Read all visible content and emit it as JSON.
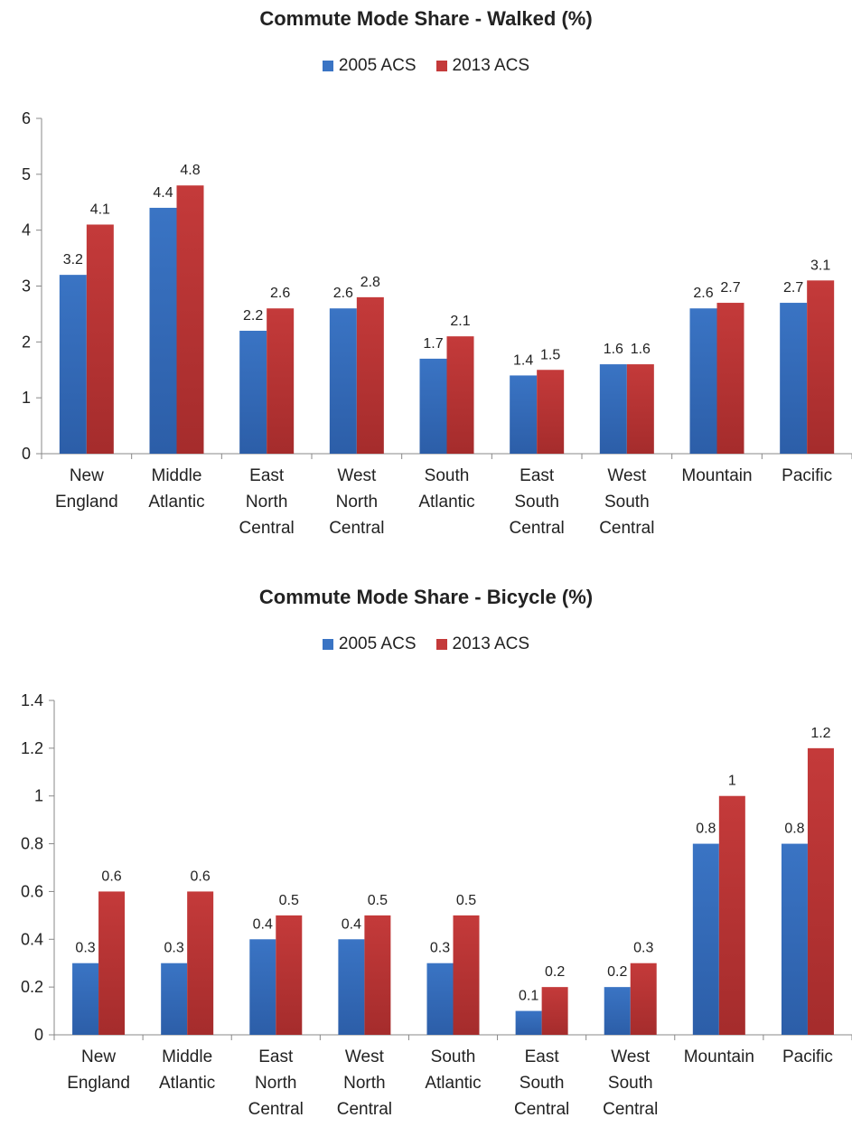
{
  "colors": {
    "series_2005": "#3a74c4",
    "series_2013": "#c43a3a",
    "axis": "#888888"
  },
  "chart_data": [
    {
      "type": "bar",
      "title": "Commute Mode Share - Walked (%)",
      "categories": [
        [
          "New",
          "England"
        ],
        [
          "Middle",
          "Atlantic"
        ],
        [
          "East",
          "North",
          "Central"
        ],
        [
          "West",
          "North",
          "Central"
        ],
        [
          "South",
          "Atlantic"
        ],
        [
          "East",
          "South",
          "Central"
        ],
        [
          "West",
          "South",
          "Central"
        ],
        [
          "Mountain"
        ],
        [
          "Pacific"
        ]
      ],
      "series": [
        {
          "name": "2005 ACS",
          "values": [
            3.2,
            4.4,
            2.2,
            2.6,
            1.7,
            1.4,
            1.6,
            2.6,
            2.7
          ]
        },
        {
          "name": "2013 ACS",
          "values": [
            4.1,
            4.8,
            2.6,
            2.8,
            2.1,
            1.5,
            1.6,
            2.7,
            3.1
          ]
        }
      ],
      "yticks": [
        "0",
        "1",
        "2",
        "3",
        "4",
        "5",
        "6"
      ],
      "ylim": [
        0,
        6
      ],
      "grid": false,
      "legend": "top-center"
    },
    {
      "type": "bar",
      "title": "Commute Mode Share - Bicycle (%)",
      "categories": [
        [
          "New",
          "England"
        ],
        [
          "Middle",
          "Atlantic"
        ],
        [
          "East",
          "North",
          "Central"
        ],
        [
          "West",
          "North",
          "Central"
        ],
        [
          "South",
          "Atlantic"
        ],
        [
          "East",
          "South",
          "Central"
        ],
        [
          "West",
          "South",
          "Central"
        ],
        [
          "Mountain"
        ],
        [
          "Pacific"
        ]
      ],
      "series": [
        {
          "name": "2005 ACS",
          "values": [
            0.3,
            0.3,
            0.4,
            0.4,
            0.3,
            0.1,
            0.2,
            0.8,
            0.8
          ]
        },
        {
          "name": "2013 ACS",
          "values": [
            0.6,
            0.6,
            0.5,
            0.5,
            0.5,
            0.2,
            0.3,
            1,
            1.2
          ]
        }
      ],
      "yticks": [
        "0",
        "0.2",
        "0.4",
        "0.6",
        "0.8",
        "1",
        "1.2",
        "1.4"
      ],
      "ylim": [
        0,
        1.4
      ],
      "grid": false,
      "legend": "top-center"
    }
  ]
}
